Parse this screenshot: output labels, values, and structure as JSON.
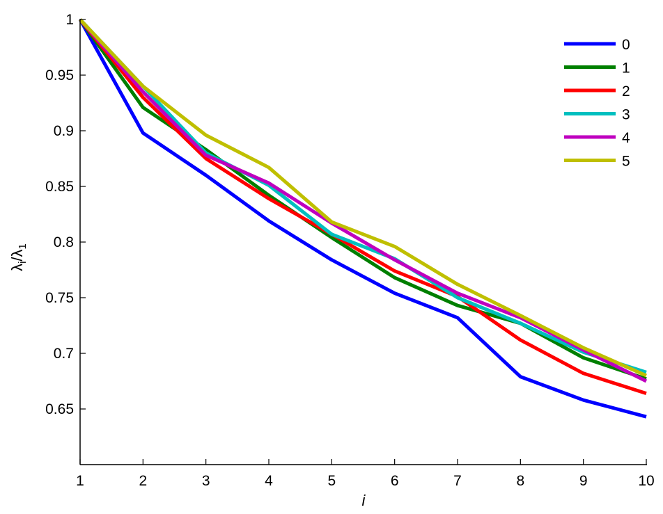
{
  "chart_data": {
    "type": "line",
    "xlabel": "i",
    "ylabel": "λi/λ1",
    "xlim": [
      1,
      10
    ],
    "ylim": [
      0.6,
      1.0
    ],
    "x": [
      1,
      2,
      3,
      4,
      5,
      6,
      7,
      8,
      9,
      10
    ],
    "x_ticks": [
      "1",
      "2",
      "3",
      "4",
      "5",
      "6",
      "7",
      "8",
      "9",
      "10"
    ],
    "y_ticks": [
      {
        "value": 0.65,
        "label": "0.65"
      },
      {
        "value": 0.7,
        "label": "0.7"
      },
      {
        "value": 0.75,
        "label": "0.75"
      },
      {
        "value": 0.8,
        "label": "0.8"
      },
      {
        "value": 0.85,
        "label": "0.85"
      },
      {
        "value": 0.9,
        "label": "0.9"
      },
      {
        "value": 0.95,
        "label": "0.95"
      },
      {
        "value": 1.0,
        "label": "1"
      }
    ],
    "grid": false,
    "legend_position": "top-right",
    "series": [
      {
        "name": "0",
        "color": "#0000ff",
        "values": [
          1.0,
          0.898,
          0.86,
          0.819,
          0.784,
          0.754,
          0.732,
          0.679,
          0.658,
          0.643
        ]
      },
      {
        "name": "1",
        "color": "#007f00",
        "values": [
          1.0,
          0.921,
          0.883,
          0.842,
          0.804,
          0.768,
          0.743,
          0.727,
          0.696,
          0.677
        ]
      },
      {
        "name": "2",
        "color": "#ff0000",
        "values": [
          1.0,
          0.93,
          0.875,
          0.839,
          0.807,
          0.774,
          0.751,
          0.712,
          0.682,
          0.664
        ]
      },
      {
        "name": "3",
        "color": "#00bfbf",
        "values": [
          1.0,
          0.94,
          0.88,
          0.851,
          0.807,
          0.785,
          0.75,
          0.727,
          0.701,
          0.683
        ]
      },
      {
        "name": "4",
        "color": "#bf00bf",
        "values": [
          1.0,
          0.935,
          0.878,
          0.853,
          0.817,
          0.784,
          0.754,
          0.732,
          0.703,
          0.675
        ]
      },
      {
        "name": "5",
        "color": "#bfbf00",
        "values": [
          1.0,
          0.94,
          0.896,
          0.867,
          0.818,
          0.796,
          0.762,
          0.734,
          0.705,
          0.68
        ]
      }
    ]
  }
}
